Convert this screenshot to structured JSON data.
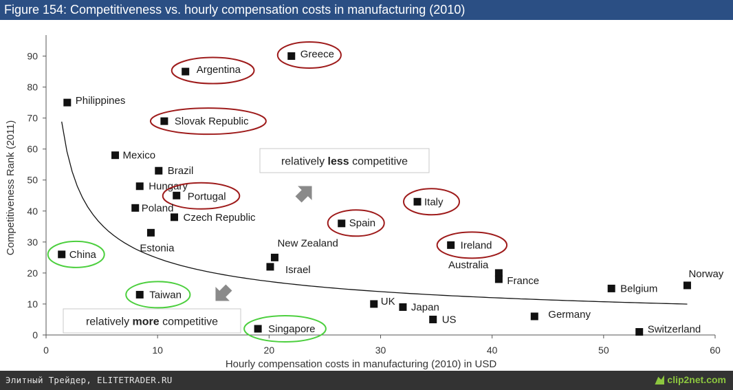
{
  "window": {
    "title": "Figure 154: Competitiveness vs. hourly compensation costs in manufacturing (2010)"
  },
  "footer": {
    "source": "Элитный Трейдер, ELITETRADER.RU",
    "brand": "clip2net.com"
  },
  "chart_data": {
    "type": "scatter",
    "title": "Figure 154: Competitiveness vs. hourly compensation costs in manufacturing (2010)",
    "xlabel": "Hourly compensation costs in manufacturing (2010) in USD",
    "ylabel": "Competitiveness Rank (2011)",
    "xlim": [
      0,
      60
    ],
    "ylim": [
      0,
      95
    ],
    "xticks": [
      0,
      10,
      20,
      30,
      40,
      50,
      60
    ],
    "yticks": [
      0,
      10,
      20,
      30,
      40,
      50,
      60,
      70,
      80,
      90
    ],
    "grid": false,
    "points": [
      {
        "label": "Greece",
        "x": 22.0,
        "y": 90,
        "highlight": "red"
      },
      {
        "label": "Argentina",
        "x": 12.5,
        "y": 85,
        "highlight": "red"
      },
      {
        "label": "Philippines",
        "x": 1.9,
        "y": 75,
        "highlight": "none"
      },
      {
        "label": "Slovak Republic",
        "x": 10.6,
        "y": 69,
        "highlight": "red"
      },
      {
        "label": "Mexico",
        "x": 6.2,
        "y": 58,
        "highlight": "none"
      },
      {
        "label": "Brazil",
        "x": 10.1,
        "y": 53,
        "highlight": "none"
      },
      {
        "label": "Hungary",
        "x": 8.4,
        "y": 48,
        "highlight": "none"
      },
      {
        "label": "Portugal",
        "x": 11.7,
        "y": 45,
        "highlight": "red"
      },
      {
        "label": "Poland",
        "x": 8.0,
        "y": 41,
        "highlight": "none"
      },
      {
        "label": "Czech Republic",
        "x": 11.5,
        "y": 38,
        "highlight": "none"
      },
      {
        "label": "Estonia",
        "x": 9.4,
        "y": 33,
        "highlight": "none"
      },
      {
        "label": "China",
        "x": 1.4,
        "y": 26,
        "highlight": "green"
      },
      {
        "label": "New Zealand",
        "x": 20.5,
        "y": 25,
        "highlight": "none"
      },
      {
        "label": "Israel",
        "x": 20.1,
        "y": 22,
        "highlight": "none"
      },
      {
        "label": "Spain",
        "x": 26.5,
        "y": 36,
        "highlight": "red"
      },
      {
        "label": "Italy",
        "x": 33.3,
        "y": 43,
        "highlight": "red"
      },
      {
        "label": "Ireland",
        "x": 36.3,
        "y": 29,
        "highlight": "red"
      },
      {
        "label": "Australia",
        "x": 40.6,
        "y": 20,
        "highlight": "none"
      },
      {
        "label": "France",
        "x": 40.6,
        "y": 18,
        "highlight": "none"
      },
      {
        "label": "Taiwan",
        "x": 8.4,
        "y": 13,
        "highlight": "green"
      },
      {
        "label": "UK",
        "x": 29.4,
        "y": 10,
        "highlight": "none"
      },
      {
        "label": "Japan",
        "x": 32.0,
        "y": 9,
        "highlight": "none"
      },
      {
        "label": "US",
        "x": 34.7,
        "y": 5,
        "highlight": "none"
      },
      {
        "label": "Germany",
        "x": 43.8,
        "y": 6,
        "highlight": "none"
      },
      {
        "label": "Singapore",
        "x": 19.0,
        "y": 2,
        "highlight": "green"
      },
      {
        "label": "Belgium",
        "x": 50.7,
        "y": 15,
        "highlight": "none"
      },
      {
        "label": "Norway",
        "x": 57.5,
        "y": 16,
        "highlight": "none"
      },
      {
        "label": "Switzerland",
        "x": 53.2,
        "y": 1,
        "highlight": "none"
      }
    ],
    "trend_curve": {
      "type": "power",
      "a": 82,
      "b": -0.52,
      "x_from": 1.4,
      "x_to": 57.5
    },
    "annotations": [
      {
        "prefix": "relatively ",
        "bold": "less",
        "suffix": " competitive",
        "arrow": "up-right"
      },
      {
        "prefix": "relatively ",
        "bold": "more",
        "suffix": " competitive",
        "arrow": "down-left"
      }
    ],
    "colors": {
      "marker": "#111111",
      "highlight_red": "#9e1b1b",
      "highlight_green": "#4ccf3e",
      "arrow": "#8a8a8a"
    }
  }
}
